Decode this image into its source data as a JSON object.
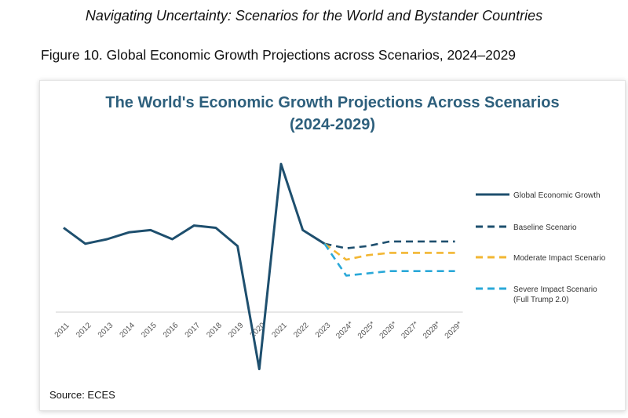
{
  "header": {
    "running_title": "Navigating Uncertainty: Scenarios for the World and Bystander Countries",
    "figure_caption": "Figure 10. Global Economic Growth Projections across Scenarios, 2024–2029"
  },
  "source": "Source: ECES",
  "colors": {
    "global": "#1e4f6e",
    "baseline": "#1e4f6e",
    "moderate": "#f2b632",
    "severe": "#2aa8d8",
    "axis": "#cfcfcf"
  },
  "chart_data": {
    "type": "line",
    "title_line1": "The World's Economic Growth Projections Across Scenarios",
    "title_line2": "(2024-2029)",
    "categories": [
      "2011",
      "2012",
      "2013",
      "2014",
      "2015",
      "2016",
      "2017",
      "2018",
      "2019",
      "2020",
      "2021",
      "2022",
      "2023",
      "2024*",
      "2025*",
      "2026*",
      "2027*",
      "2028*",
      "2029*"
    ],
    "ylim": [
      -3.5,
      7.0
    ],
    "series": [
      {
        "name": "Global Economic Growth",
        "style": "solid",
        "color": "#1e4f6e",
        "values": [
          3.3,
          2.6,
          2.8,
          3.1,
          3.2,
          2.8,
          3.4,
          3.3,
          2.5,
          -2.9,
          6.1,
          3.2,
          2.6,
          null,
          null,
          null,
          null,
          null,
          null
        ]
      },
      {
        "name": "Baseline Scenario",
        "style": "dashed",
        "color": "#1e4f6e",
        "values": [
          null,
          null,
          null,
          null,
          null,
          null,
          null,
          null,
          null,
          null,
          null,
          null,
          2.6,
          2.4,
          2.5,
          2.7,
          2.7,
          2.7,
          2.7
        ]
      },
      {
        "name": "Moderate Impact Scenario",
        "style": "dashed",
        "color": "#f2b632",
        "values": [
          null,
          null,
          null,
          null,
          null,
          null,
          null,
          null,
          null,
          null,
          null,
          null,
          2.6,
          1.9,
          2.1,
          2.2,
          2.2,
          2.2,
          2.2
        ]
      },
      {
        "name": "Severe Impact Scenario (Full Trump 2.0)",
        "style": "dashed",
        "color": "#2aa8d8",
        "values": [
          null,
          null,
          null,
          null,
          null,
          null,
          null,
          null,
          null,
          null,
          null,
          null,
          2.6,
          1.2,
          1.3,
          1.4,
          1.4,
          1.4,
          1.4
        ]
      }
    ],
    "legend_position": "right"
  }
}
